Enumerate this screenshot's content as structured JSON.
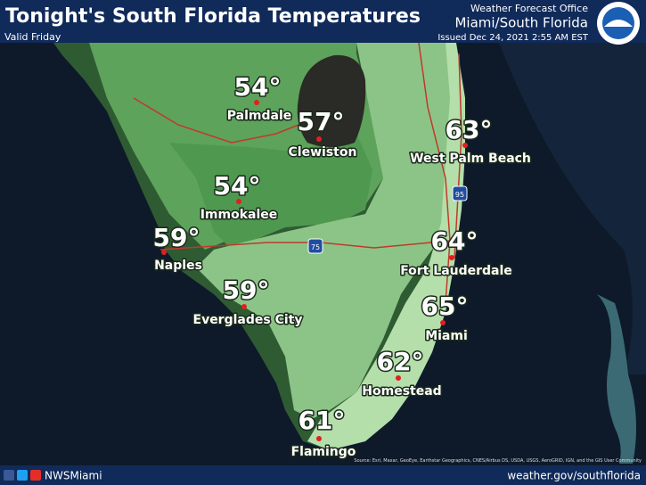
{
  "header": {
    "title": "Tonight's South Florida Temperatures",
    "subtitle": "Valid Friday",
    "office": "Weather Forecast Office",
    "office_name": "Miami/South Florida",
    "issued": "Issued Dec 24, 2021 2:55 AM EST"
  },
  "cities": [
    {
      "name": "Palmdale",
      "temp": "54°"
    },
    {
      "name": "Clewiston",
      "temp": "57°"
    },
    {
      "name": "West Palm Beach",
      "temp": "63°"
    },
    {
      "name": "Immokalee",
      "temp": "54°"
    },
    {
      "name": "Naples",
      "temp": "59°"
    },
    {
      "name": "Fort Lauderdale",
      "temp": "64°"
    },
    {
      "name": "Everglades City",
      "temp": "59°"
    },
    {
      "name": "Miami",
      "temp": "65°"
    },
    {
      "name": "Homestead",
      "temp": "62°"
    },
    {
      "name": "Flamingo",
      "temp": "61°"
    }
  ],
  "highways": [
    "75",
    "95"
  ],
  "footer": {
    "social": "NWSMiami",
    "website": "weather.gov/southflorida",
    "attribution": "Source: Esri, Maxar, GeoEye, Earthstar Geographics, CNES/Airbus DS, USDA, USGS, AeroGRID, IGN, and the GIS User Community"
  }
}
